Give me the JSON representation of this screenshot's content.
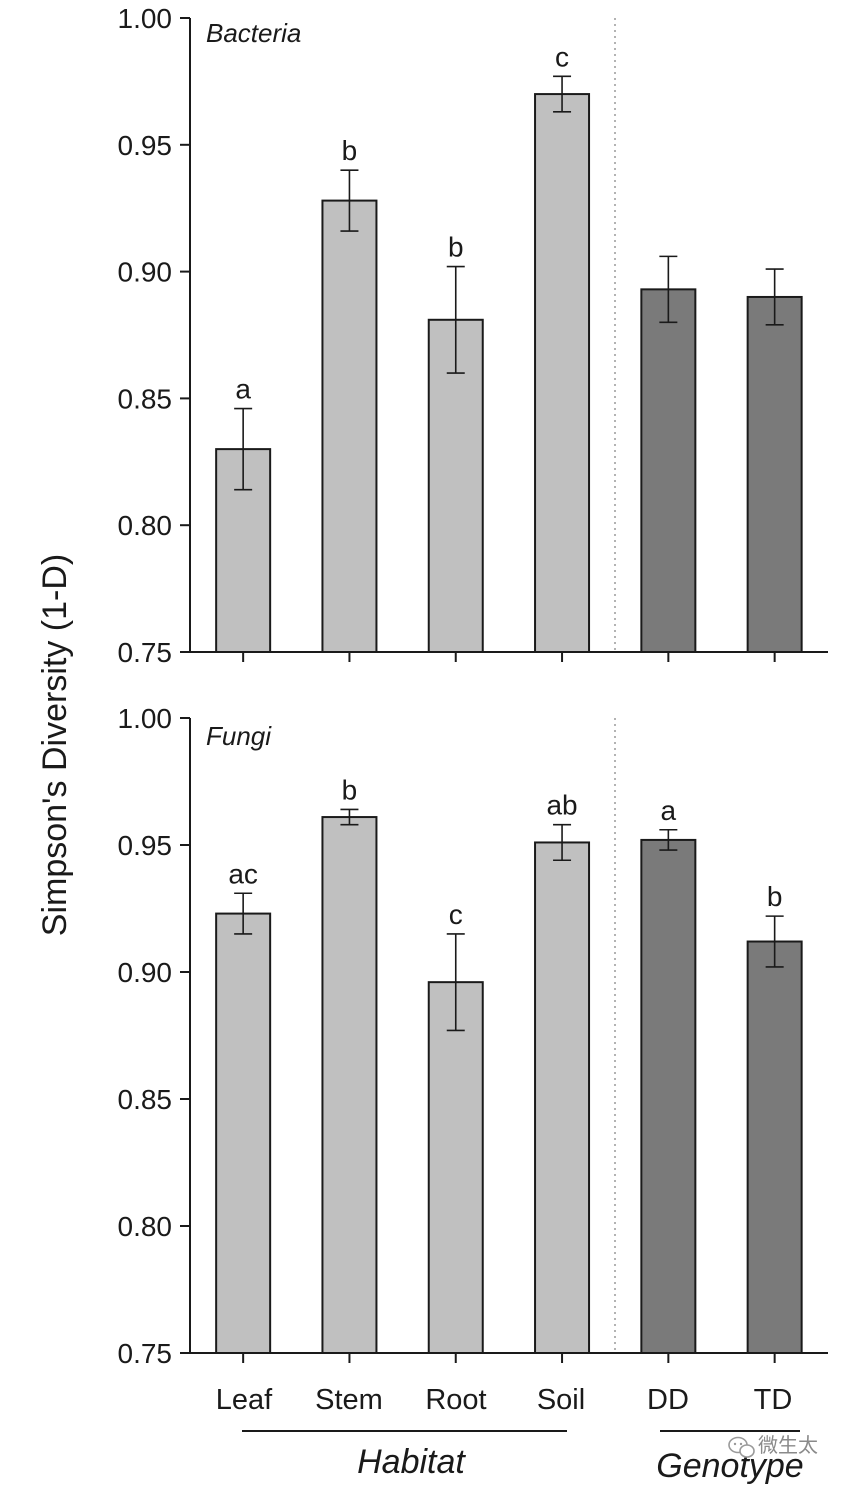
{
  "chart_data": [
    {
      "type": "bar",
      "title": "Bacteria",
      "ylabel": "Simpson's Diversity (1-D)",
      "ylim": [
        0.75,
        1.0
      ],
      "yticks": [
        "0.75",
        "0.80",
        "0.85",
        "0.90",
        "0.95",
        "1.00"
      ],
      "categories": [
        "Leaf",
        "Stem",
        "Root",
        "Soil",
        "DD",
        "TD"
      ],
      "values": [
        0.83,
        0.928,
        0.881,
        0.97,
        0.893,
        0.89
      ],
      "errors": [
        0.016,
        0.012,
        0.021,
        0.007,
        0.013,
        0.011
      ],
      "letters": [
        "a",
        "b",
        "b",
        "c",
        "",
        ""
      ],
      "groups": [
        "Habitat",
        "Habitat",
        "Habitat",
        "Habitat",
        "Genotype",
        "Genotype"
      ],
      "colors": {
        "Habitat": "#c0c0c0",
        "Genotype": "#7a7a7a"
      },
      "separator": "dotted line between Soil and DD"
    },
    {
      "type": "bar",
      "title": "Fungi",
      "ylabel": "Simpson's Diversity (1-D)",
      "ylim": [
        0.75,
        1.0
      ],
      "yticks": [
        "0.75",
        "0.80",
        "0.85",
        "0.90",
        "0.95",
        "1.00"
      ],
      "categories": [
        "Leaf",
        "Stem",
        "Root",
        "Soil",
        "DD",
        "TD"
      ],
      "values": [
        0.923,
        0.961,
        0.896,
        0.951,
        0.952,
        0.912
      ],
      "errors": [
        0.008,
        0.003,
        0.019,
        0.007,
        0.004,
        0.01
      ],
      "letters": [
        "ac",
        "b",
        "c",
        "ab",
        "a",
        "b"
      ],
      "groups": [
        "Habitat",
        "Habitat",
        "Habitat",
        "Habitat",
        "Genotype",
        "Genotype"
      ],
      "colors": {
        "Habitat": "#c0c0c0",
        "Genotype": "#7a7a7a"
      },
      "separator": "dotted line between Soil and DD"
    }
  ],
  "shared": {
    "ylabel": "Simpson's Diversity (1-D)",
    "xlabels": [
      "Leaf",
      "Stem",
      "Root",
      "Soil",
      "DD",
      "TD"
    ],
    "group_labels": {
      "habitat": "Habitat",
      "genotype": "Genotype"
    }
  },
  "watermark": {
    "text": "微生太",
    "icon": "wechat-icon"
  }
}
